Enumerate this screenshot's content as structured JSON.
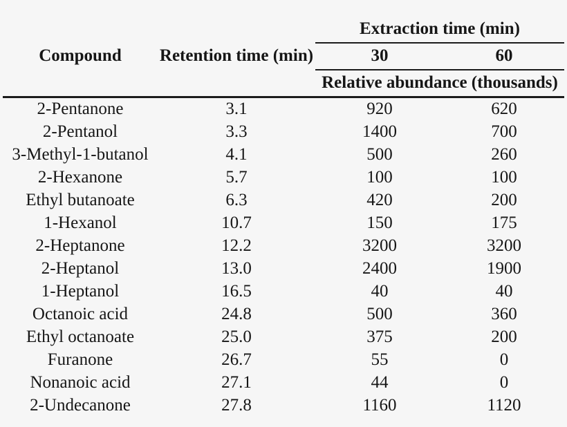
{
  "header": {
    "compound": "Compound",
    "retention_time": "Retention time (min)",
    "extraction_time_group": "Extraction time (min)",
    "extraction_30": "30",
    "extraction_60": "60",
    "abundance_note": "Relative abundance (thousands)"
  },
  "chart_data": {
    "type": "table",
    "title": "",
    "column_group": {
      "label": "Extraction time (min)",
      "sub_label": "Relative abundance (thousands)",
      "spans": [
        "30",
        "60"
      ]
    },
    "columns": [
      "Compound",
      "Retention time (min)",
      "30",
      "60"
    ],
    "rows": [
      [
        "2-Pentanone",
        "3.1",
        "920",
        "620"
      ],
      [
        "2-Pentanol",
        "3.3",
        "1400",
        "700"
      ],
      [
        "3-Methyl-1-butanol",
        "4.1",
        "500",
        "260"
      ],
      [
        "2-Hexanone",
        "5.7",
        "100",
        "100"
      ],
      [
        "Ethyl butanoate",
        "6.3",
        "420",
        "200"
      ],
      [
        "1-Hexanol",
        "10.7",
        "150",
        "175"
      ],
      [
        "2-Heptanone",
        "12.2",
        "3200",
        "3200"
      ],
      [
        "2-Heptanol",
        "13.0",
        "2400",
        "1900"
      ],
      [
        "1-Heptanol",
        "16.5",
        "40",
        "40"
      ],
      [
        "Octanoic acid",
        "24.8",
        "500",
        "360"
      ],
      [
        "Ethyl octanoate",
        "25.0",
        "375",
        "200"
      ],
      [
        "Furanone",
        "26.7",
        "55",
        "0"
      ],
      [
        "Nonanoic acid",
        "27.1",
        "44",
        "0"
      ],
      [
        "2-Undecanone",
        "27.8",
        "1160",
        "1120"
      ]
    ],
    "colors": {
      "background": "#f6f6f6",
      "text": "#161616",
      "rule": "#1b1b1b"
    }
  }
}
